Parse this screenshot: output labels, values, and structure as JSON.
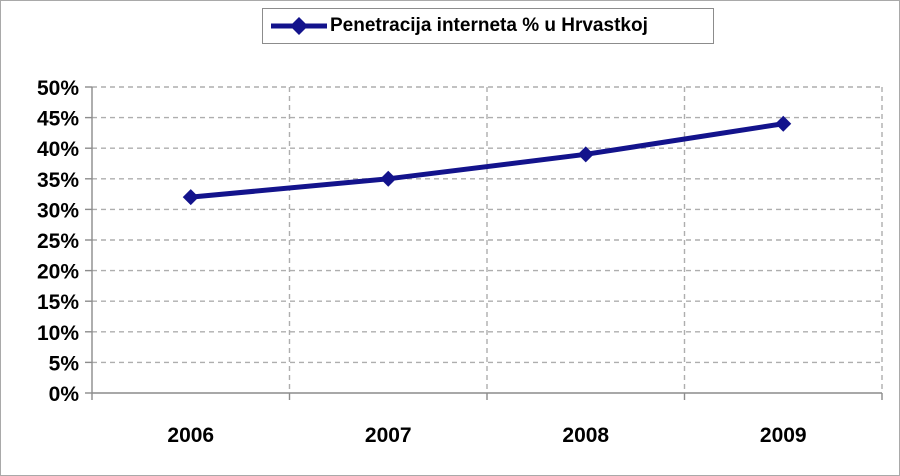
{
  "window": {
    "background": "#ffffff",
    "border_color": "#a9a9a9"
  },
  "legend": {
    "label": "Penetracija interneta % u Hrvastkoj",
    "border_color": "#8c8c8c",
    "background": "#ffffff",
    "position": "top-center"
  },
  "chart_data": {
    "type": "line",
    "categories": [
      "2006",
      "2007",
      "2008",
      "2009"
    ],
    "series": [
      {
        "name": "Penetracija interneta % u Hrvastkoj",
        "values": [
          32,
          35,
          39,
          44
        ],
        "color": "#13138c",
        "marker": "diamond"
      }
    ],
    "title": "",
    "xlabel": "",
    "ylabel": "",
    "ylim": [
      0,
      50
    ],
    "ytick_step": 5,
    "ytick_suffix": "%",
    "y_tick_labels": [
      "0%",
      "5%",
      "10%",
      "15%",
      "20%",
      "25%",
      "30%",
      "35%",
      "40%",
      "45%",
      "50%"
    ],
    "grid": true,
    "gridline_style": "dashed",
    "legend_position": "top"
  },
  "style": {
    "series_color": "#13138c",
    "grid_color": "#aeaeae",
    "axis_color": "#8c8c8c",
    "tick_label_color": "#000000",
    "line_width": 5,
    "marker_half_size": 8
  }
}
